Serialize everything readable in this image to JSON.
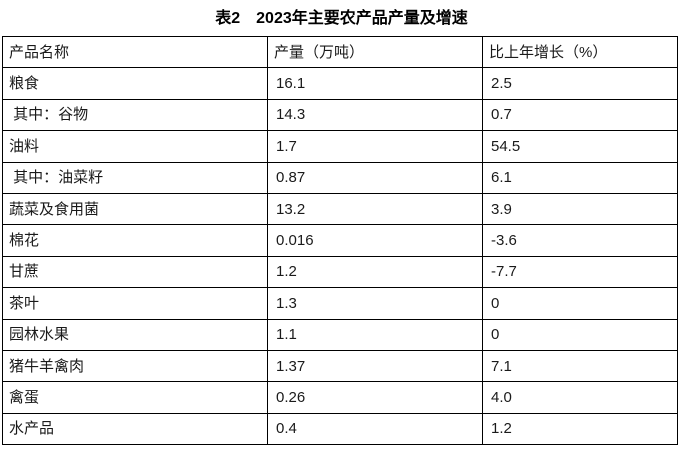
{
  "title": "表2　2023年主要农产品产量及增速",
  "table": {
    "headers": [
      "产品名称",
      "产量（万吨）",
      "比上年增长（%）"
    ],
    "rows": [
      [
        "粮食",
        "16.1",
        "2.5"
      ],
      [
        " 其中：谷物",
        "14.3",
        "0.7"
      ],
      [
        "油料",
        "1.7",
        "54.5"
      ],
      [
        " 其中：油菜籽",
        "0.87",
        "6.1"
      ],
      [
        "蔬菜及食用菌",
        "13.2",
        "3.9"
      ],
      [
        "棉花",
        "0.016",
        "-3.6"
      ],
      [
        "甘蔗",
        "1.2",
        "-7.7"
      ],
      [
        "茶叶",
        "1.3",
        "0"
      ],
      [
        "园林水果",
        "1.1",
        "0"
      ],
      [
        "猪牛羊禽肉",
        "1.37",
        "7.1"
      ],
      [
        "禽蛋",
        "0.26",
        "4.0"
      ],
      [
        "水产品",
        "0.4",
        "1.2"
      ]
    ]
  },
  "colors": {
    "text": "#1a1a1a",
    "border": "#000000",
    "background": "#ffffff"
  }
}
